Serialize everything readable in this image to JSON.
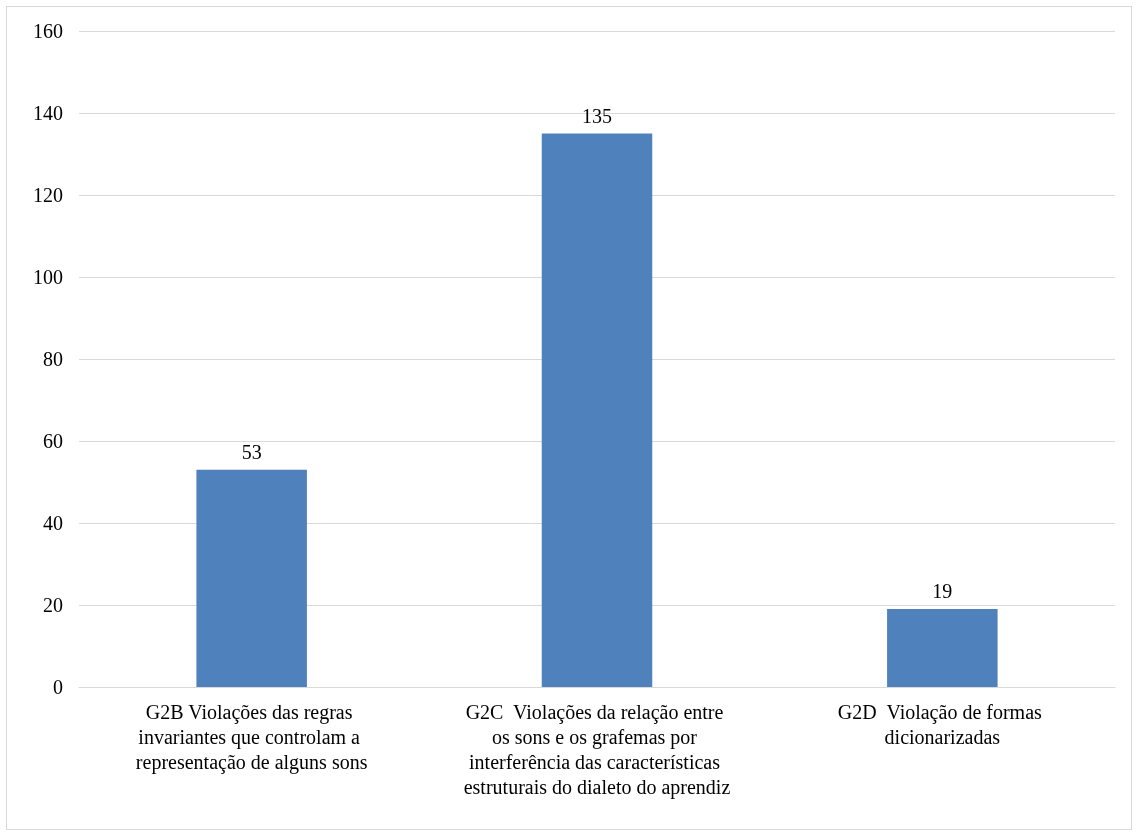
{
  "chart_data": {
    "type": "bar",
    "categories": [
      "G2B Violações das regras invariantes que controlam a representação de alguns sons",
      "G2C  Violações da relação entre os sons e os grafemas por interferência das características estruturais do dialeto do aprendiz",
      "G2D  Violação de formas dicionarizadas"
    ],
    "values": [
      53,
      135,
      19
    ],
    "color": "#4f81bd",
    "data_labels": true,
    "ylim": [
      0,
      160
    ],
    "yticks": [
      0,
      20,
      40,
      60,
      80,
      100,
      120,
      140,
      160
    ],
    "grid": "y"
  }
}
